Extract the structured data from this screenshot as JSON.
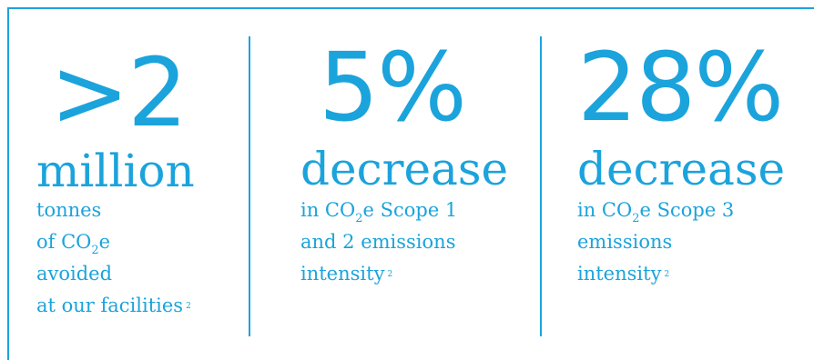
{
  "colors": {
    "accent": "#1ba3dc"
  },
  "stats": [
    {
      "value": ">2",
      "unit": "million",
      "lines": [
        "tonnes",
        "of CO",
        "2",
        "e",
        "avoided",
        "at our facilities",
        "2"
      ]
    },
    {
      "value": "5%",
      "unit": "decrease",
      "lines": [
        "in CO",
        "2",
        "e Scope 1",
        "and 2 emissions",
        "intensity",
        "2"
      ]
    },
    {
      "value": "28%",
      "unit": "decrease",
      "lines": [
        "in CO",
        "2",
        "e Scope 3",
        "emissions",
        "intensity",
        "2"
      ]
    }
  ]
}
